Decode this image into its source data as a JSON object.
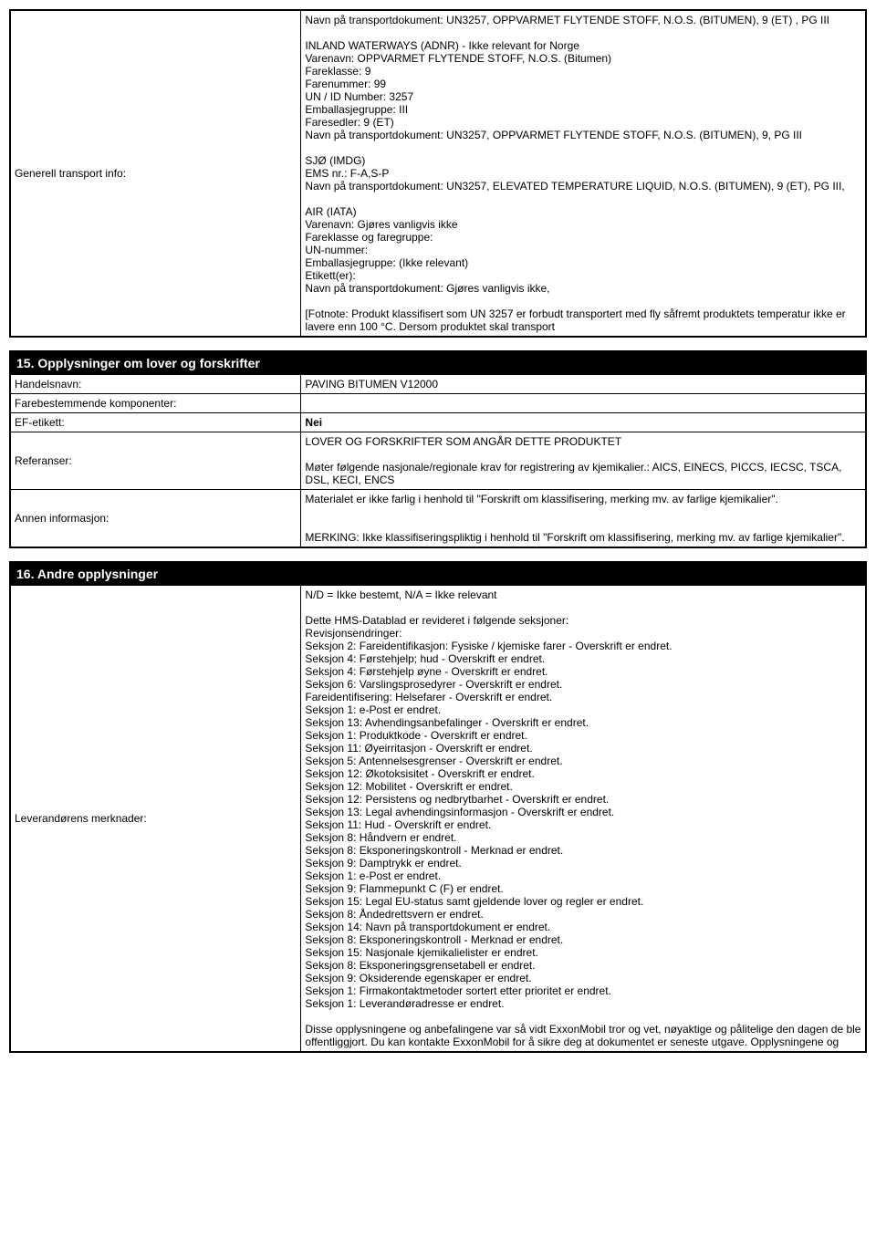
{
  "section14": {
    "row": {
      "label": "Generell transport info:",
      "value": "Navn på transportdokument: UN3257, OPPVARMET FLYTENDE STOFF, N.O.S. (BITUMEN), 9 (ET) , PG III\n\nINLAND WATERWAYS (ADNR) - Ikke relevant for Norge\nVarenavn: OPPVARMET FLYTENDE STOFF, N.O.S. (Bitumen)\nFareklasse: 9\nFarenummer: 99\nUN / ID Number: 3257\nEmballasjegruppe: III\nFaresedler: 9 (ET)\nNavn på transportdokument: UN3257, OPPVARMET FLYTENDE STOFF, N.O.S. (BITUMEN), 9, PG III\n\nSJØ (IMDG)\nEMS nr.: F-A,S-P\nNavn på transportdokument: UN3257, ELEVATED TEMPERATURE LIQUID, N.O.S. (BITUMEN), 9 (ET), PG III,\n\nAIR (IATA)\nVarenavn: Gjøres vanligvis ikke\nFareklasse og faregruppe:\nUN-nummer:\nEmballasjegruppe: (Ikke relevant)\nEtikett(er):\nNavn på transportdokument: Gjøres vanligvis ikke,\n\n[Fotnote: Produkt klassifisert som UN 3257 er forbudt transportert med fly såfremt produktets temperatur ikke er lavere enn 100 °C. Dersom produktet skal transport"
    }
  },
  "section15": {
    "header": "15. Opplysninger om lover og forskrifter",
    "rows": [
      {
        "label": "Handelsnavn:",
        "value": "PAVING BITUMEN V12000"
      },
      {
        "label": "Farebestemmende komponenter:",
        "value": ""
      },
      {
        "label": "EF-etikett:",
        "value": "Nei",
        "bold": true
      },
      {
        "label": "Referanser:",
        "value": "LOVER OG FORSKRIFTER SOM ANGÅR DETTE PRODUKTET\n\nMøter følgende nasjonale/regionale krav for registrering av kjemikalier.: AICS, EINECS, PICCS, IECSC, TSCA, DSL, KECI, ENCS"
      },
      {
        "label": "Annen informasjon:",
        "value": "Materialet er ikke farlig i henhold til \"Forskrift om klassifisering, merking mv. av farlige kjemikalier\".\n\n\nMERKING: Ikke klassifiseringspliktig i henhold til \"Forskrift om klassifisering, merking mv. av farlige kjemikalier\"."
      }
    ]
  },
  "section16": {
    "header": "16. Andre opplysninger",
    "row": {
      "label": "Leverandørens merknader:",
      "value": "N/D = Ikke bestemt, N/A = Ikke relevant\n\nDette HMS-Datablad er revideret i følgende seksjoner:\nRevisjonsendringer:\nSeksjon 2: Fareidentifikasjon: Fysiske / kjemiske farer - Overskrift er endret.\nSeksjon 4: Førstehjelp; hud - Overskrift er endret.\nSeksjon 4: Førstehjelp øyne - Overskrift er endret.\nSeksjon 6: Varslingsprosedyrer - Overskrift er endret.\nFareidentifisering: Helsefarer - Overskrift er endret.\nSeksjon 1: e-Post er endret.\nSeksjon 13: Avhendingsanbefalinger - Overskrift er endret.\nSeksjon 1: Produktkode - Overskrift er endret.\nSeksjon 11: Øyeirritasjon - Overskrift er endret.\nSeksjon 5: Antennelsesgrenser - Overskrift er endret.\nSeksjon 12: Økotoksisitet - Overskrift er endret.\nSeksjon 12: Mobilitet - Overskrift er endret.\nSeksjon 12: Persistens og nedbrytbarhet - Overskrift er endret.\nSeksjon 13: Legal avhendingsinformasjon - Overskrift er endret.\nSeksjon 11: Hud - Overskrift er endret.\nSeksjon 8: Håndvern er endret.\nSeksjon 8: Eksponeringskontroll - Merknad er endret.\nSeksjon 9: Damptrykk er endret.\nSeksjon 1: e-Post er endret.\nSeksjon 9: Flammepunkt C (F) er endret.\nSeksjon 15: Legal EU-status samt gjeldende lover og regler er endret.\nSeksjon 8: Åndedrettsvern er endret.\nSeksjon 14: Navn på transportdokument er endret.\nSeksjon 8: Eksponeringskontroll - Merknad er endret.\nSeksjon 15: Nasjonale kjemikalielister er endret.\nSeksjon 8: Eksponeringsgrensetabell er endret.\nSeksjon 9: Oksiderende egenskaper er endret.\nSeksjon 1: Firmakontaktmetoder sortert etter prioritet er endret.\nSeksjon 1: Leverandøradresse er endret.\n\nDisse opplysningene og anbefalingene var så vidt ExxonMobil tror og vet, nøyaktige og pålitelige den dagen de ble offentliggjort. Du kan kontakte ExxonMobil for å sikre deg at dokumentet er seneste utgave. Opplysningene og"
    }
  }
}
